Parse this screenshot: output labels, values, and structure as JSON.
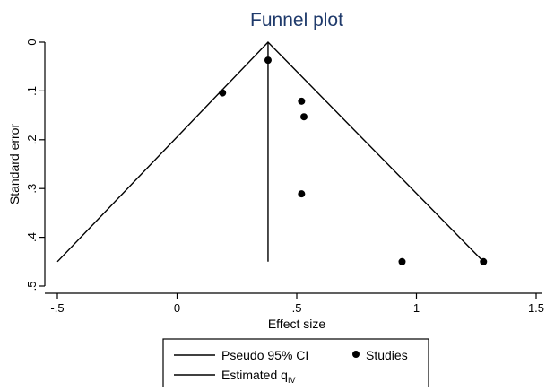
{
  "chart_data": {
    "type": "scatter",
    "title": "Funnel plot",
    "xlabel": "Effect size",
    "ylabel": "Standard error",
    "xlim": [
      -0.5,
      1.5
    ],
    "ylim": [
      0,
      0.5
    ],
    "y_reversed": true,
    "x_ticks": [
      {
        "value": -0.5,
        "label": "-.5"
      },
      {
        "value": 0,
        "label": "0"
      },
      {
        "value": 0.5,
        "label": ".5"
      },
      {
        "value": 1,
        "label": "1"
      },
      {
        "value": 1.5,
        "label": "1.5"
      }
    ],
    "y_ticks": [
      {
        "value": 0,
        "label": "0"
      },
      {
        "value": 0.1,
        "label": ".1"
      },
      {
        "value": 0.2,
        "label": ".2"
      },
      {
        "value": 0.3,
        "label": ".3"
      },
      {
        "value": 0.4,
        "label": ".4"
      },
      {
        "value": 0.5,
        "label": ".5"
      }
    ],
    "grid": false,
    "legend_position": "bottom",
    "estimate": 0.38,
    "max_se": 0.45,
    "series": [
      {
        "name": "Studies",
        "kind": "points",
        "points": [
          {
            "x": 0.38,
            "y": 0.037
          },
          {
            "x": 0.19,
            "y": 0.104
          },
          {
            "x": 0.52,
            "y": 0.121
          },
          {
            "x": 0.53,
            "y": 0.153
          },
          {
            "x": 0.52,
            "y": 0.311
          },
          {
            "x": 0.94,
            "y": 0.45
          },
          {
            "x": 1.28,
            "y": 0.45
          }
        ]
      },
      {
        "name": "Pseudo 95% CI",
        "kind": "line",
        "points": [
          {
            "x": -0.5,
            "y": 0.45
          },
          {
            "x": 0.38,
            "y": 0
          },
          {
            "x": 1.28,
            "y": 0.45
          }
        ]
      },
      {
        "name": "Estimated q",
        "subscript": "IV",
        "kind": "line",
        "points": [
          {
            "x": 0.38,
            "y": 0
          },
          {
            "x": 0.38,
            "y": 0.45
          }
        ]
      }
    ],
    "legend": {
      "ci_label": "Pseudo 95% CI",
      "studies_label": "Studies",
      "estimate_label": "Estimated q",
      "estimate_sub": "IV"
    },
    "colors": {
      "title": "#1f3a6b",
      "ink": "#000000",
      "background": "#ffffff"
    }
  }
}
